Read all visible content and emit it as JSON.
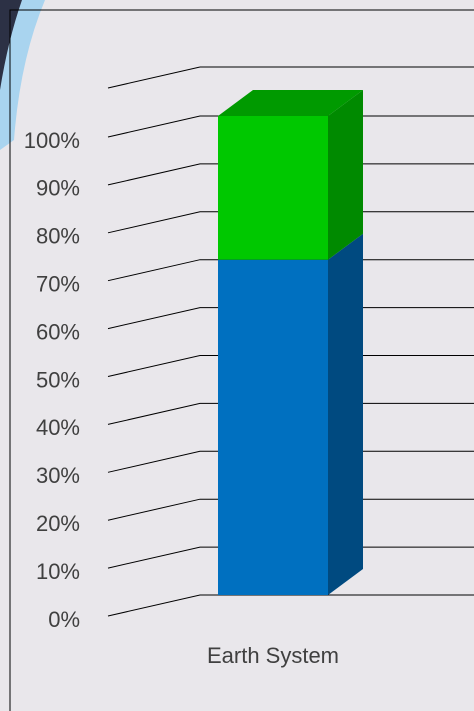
{
  "chart_data": {
    "type": "stacked-bar-3d",
    "categories": [
      "Earth System"
    ],
    "series": [
      {
        "color": "#0070c0",
        "side_color": "#004a80",
        "values": [
          70
        ]
      },
      {
        "color": "#00c800",
        "side_color": "#008a00",
        "values": [
          30
        ]
      }
    ],
    "ylim": [
      0,
      100
    ],
    "yticks": [
      {
        "value": 0,
        "label": "0%"
      },
      {
        "value": 10,
        "label": "10%"
      },
      {
        "value": 20,
        "label": "20%"
      },
      {
        "value": 30,
        "label": "30%"
      },
      {
        "value": 40,
        "label": "40%"
      },
      {
        "value": 50,
        "label": "50%"
      },
      {
        "value": 60,
        "label": "60%"
      },
      {
        "value": 70,
        "label": "70%"
      },
      {
        "value": 80,
        "label": "80%"
      },
      {
        "value": 90,
        "label": "90%"
      },
      {
        "value": 100,
        "label": "100%"
      }
    ],
    "grid": true
  }
}
